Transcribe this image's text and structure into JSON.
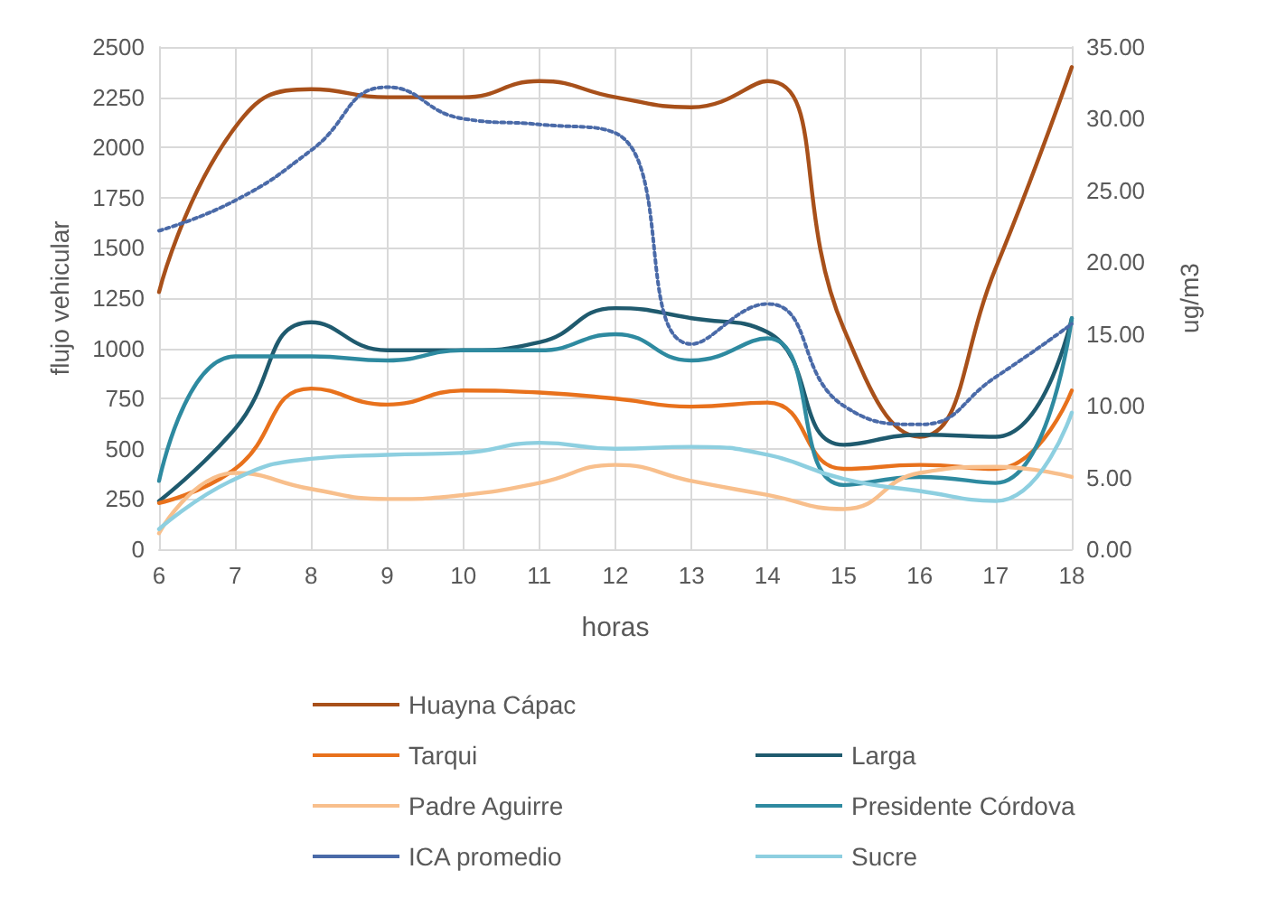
{
  "chart_data": {
    "type": "line",
    "xlabel": "horas",
    "ylabel": "flujo vehicular",
    "y2label": "ug/m3",
    "x": [
      6,
      7,
      8,
      9,
      10,
      11,
      12,
      13,
      14,
      15,
      16,
      17,
      18
    ],
    "xlim": [
      6,
      18
    ],
    "xticks": [
      6,
      7,
      8,
      9,
      10,
      11,
      12,
      13,
      14,
      15,
      16,
      17,
      18
    ],
    "ylim": [
      0,
      2500
    ],
    "yticks": [
      0,
      250,
      500,
      750,
      1000,
      1250,
      1500,
      1750,
      2000,
      2250,
      2500
    ],
    "y2lim": [
      0,
      35
    ],
    "y2ticks": [
      {
        "value": 0,
        "label": "0.00"
      },
      {
        "value": 5,
        "label": "5.00"
      },
      {
        "value": 10,
        "label": "10.00"
      },
      {
        "value": 15,
        "label": "15.00"
      },
      {
        "value": 20,
        "label": "20.00"
      },
      {
        "value": 25,
        "label": "25.00"
      },
      {
        "value": 30,
        "label": "30.00"
      },
      {
        "value": 35,
        "label": "35.00"
      }
    ],
    "grid": true,
    "legend": "bottom",
    "marker": "none",
    "series": [
      {
        "name": "Huayna Cápac",
        "color": "#a8501a",
        "values": [
          1280,
          2100,
          2290,
          2250,
          2250,
          2330,
          2250,
          2200,
          2330,
          1100,
          560,
          1400,
          2400
        ]
      },
      {
        "name": "Larga",
        "color": "#1f5a6e",
        "values": [
          240,
          600,
          1130,
          990,
          990,
          1030,
          1200,
          1150,
          1080,
          520,
          570,
          560,
          1150
        ]
      },
      {
        "name": "Tarqui",
        "color": "#e8711c",
        "values": [
          230,
          400,
          800,
          720,
          790,
          780,
          750,
          710,
          730,
          400,
          420,
          400,
          790
        ]
      },
      {
        "name": "Presidente Córdova",
        "color": "#2e8aa0",
        "values": [
          340,
          960,
          960,
          940,
          990,
          990,
          1070,
          940,
          1050,
          320,
          360,
          330,
          1150
        ]
      },
      {
        "name": "Padre Aguirre",
        "color": "#f8bf8c",
        "values": [
          80,
          380,
          300,
          250,
          270,
          330,
          420,
          340,
          270,
          200,
          380,
          410,
          360
        ]
      },
      {
        "name": "Sucre",
        "color": "#8dcfe0",
        "values": [
          100,
          350,
          450,
          470,
          480,
          530,
          500,
          510,
          470,
          350,
          290,
          240,
          680
        ]
      },
      {
        "name": "ICA promedio",
        "color": "#4a6aa8",
        "axis": "y2",
        "line_style": "dotted",
        "values": [
          22.2,
          24.3,
          27.8,
          32.2,
          30.0,
          29.6,
          29.0,
          14.3,
          17.1,
          10.0,
          8.7,
          12.0,
          15.7
        ]
      }
    ]
  }
}
